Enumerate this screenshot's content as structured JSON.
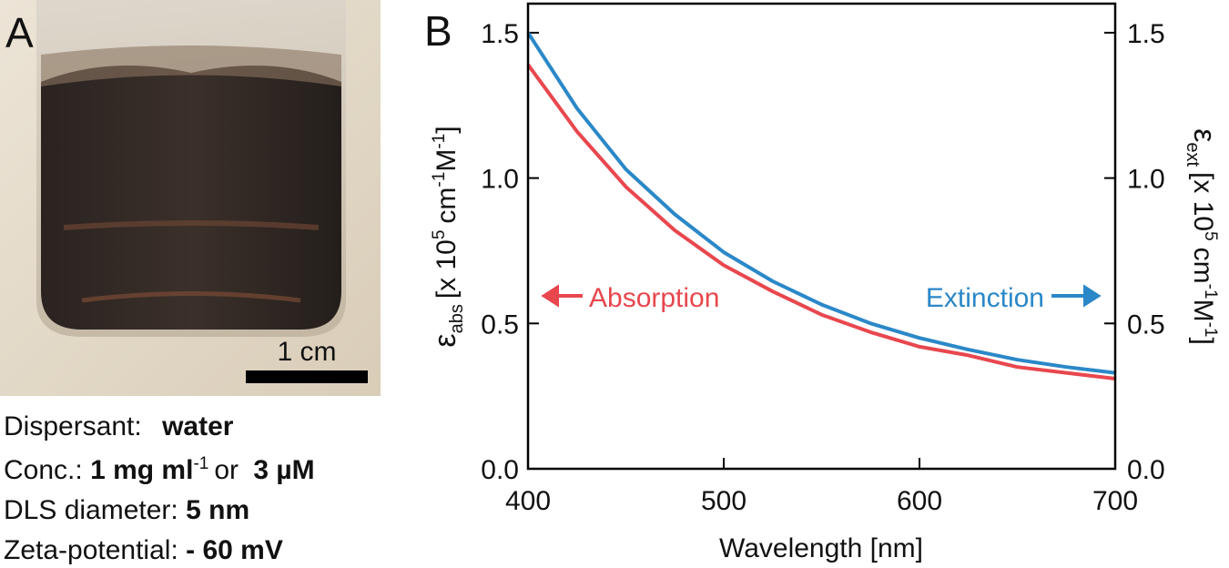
{
  "panel_a": {
    "label": "A",
    "scale_bar": "1 cm",
    "properties": [
      [
        "Dispersant:",
        "water"
      ],
      [
        "Conc.:",
        "1 mg ml",
        "-1",
        "or",
        "3 µM"
      ],
      [
        "DLS diameter:",
        "5 nm"
      ],
      [
        "Zeta-potential:",
        "- 60 mV"
      ]
    ]
  },
  "chart_data": {
    "type": "line",
    "panel_label": "B",
    "xlabel": "Wavelength [nm]",
    "ylabel": [
      "ε",
      "abs",
      "[x 10",
      "5",
      "cm",
      "-1",
      "M",
      "-1",
      "]"
    ],
    "y2label": [
      "ε",
      "ext",
      "[x 10",
      "5",
      "cm",
      "-1",
      "M",
      "-1",
      "]"
    ],
    "x": [
      400,
      425,
      450,
      475,
      500,
      525,
      550,
      575,
      600,
      625,
      650,
      675,
      700
    ],
    "series": [
      {
        "name": "Absorption",
        "color": "#e8474e",
        "values": [
          1.39,
          1.16,
          0.97,
          0.82,
          0.7,
          0.61,
          0.53,
          0.47,
          0.42,
          0.39,
          0.35,
          0.33,
          0.31
        ]
      },
      {
        "name": "Extinction",
        "color": "#2b88c8",
        "axis": "y2",
        "values": [
          1.5,
          1.24,
          1.03,
          0.875,
          0.745,
          0.645,
          0.565,
          0.5,
          0.45,
          0.41,
          0.375,
          0.35,
          0.33
        ]
      }
    ],
    "xlim": [
      400,
      700
    ],
    "xticks": [
      400,
      500,
      600,
      700
    ],
    "ylim": [
      0,
      1.6
    ],
    "yticks": [
      {
        "value": 0,
        "label": "0.0"
      },
      0.5,
      {
        "value": 1,
        "label": "1.0"
      },
      1.5
    ],
    "y2lim": [
      0,
      1.6
    ],
    "y2ticks": [
      {
        "value": 0,
        "label": "0.0"
      },
      0.5,
      {
        "value": 1,
        "label": "1.0"
      },
      1.5
    ]
  }
}
